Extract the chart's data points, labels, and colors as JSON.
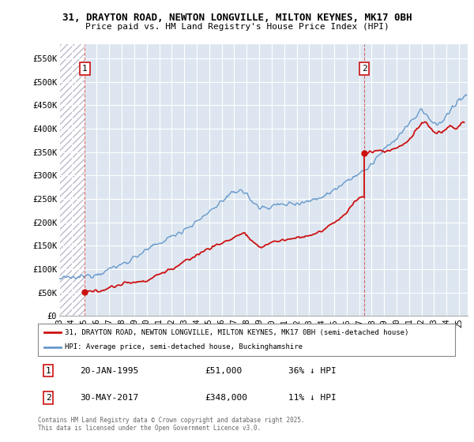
{
  "title_line1": "31, DRAYTON ROAD, NEWTON LONGVILLE, MILTON KEYNES, MK17 0BH",
  "title_line2": "Price paid vs. HM Land Registry's House Price Index (HPI)",
  "ylabel_ticks": [
    "£0",
    "£50K",
    "£100K",
    "£150K",
    "£200K",
    "£250K",
    "£300K",
    "£350K",
    "£400K",
    "£450K",
    "£500K",
    "£550K"
  ],
  "ytick_values": [
    0,
    50000,
    100000,
    150000,
    200000,
    250000,
    300000,
    350000,
    400000,
    450000,
    500000,
    550000
  ],
  "ylim": [
    0,
    580000
  ],
  "purchase1_date": 1995.05,
  "purchase1_price": 51000,
  "purchase2_date": 2017.42,
  "purchase2_price": 348000,
  "hpi_color": "#6699cc",
  "price_color": "#cc1111",
  "vline_color": "#cc1111",
  "legend_label1": "31, DRAYTON ROAD, NEWTON LONGVILLE, MILTON KEYNES, MK17 0BH (semi-detached house)",
  "legend_label2": "HPI: Average price, semi-detached house, Buckinghamshire",
  "footer": "Contains HM Land Registry data © Crown copyright and database right 2025.\nThis data is licensed under the Open Government Licence v3.0.",
  "xlim_start": 1993.0,
  "xlim_end": 2025.7
}
